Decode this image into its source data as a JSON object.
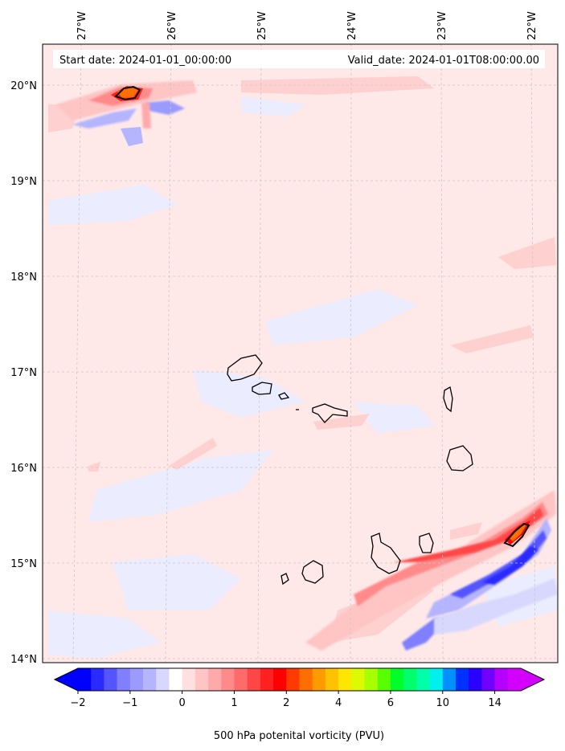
{
  "header": {
    "start_date": "Start date: 2024-01-01_00:00:00",
    "valid_date": "Valid_date: 2024-01-01T08:00:00.00"
  },
  "map": {
    "variable": "500 hPa potenital vorticity (PVU)",
    "longitude_labels": [
      "27°W",
      "26°W",
      "25°W",
      "24°W",
      "23°W",
      "22°W"
    ],
    "latitude_labels": [
      "20°N",
      "19°N",
      "18°N",
      "17°N",
      "16°N",
      "15°N",
      "14°N"
    ],
    "background_color": "#fee8e8",
    "islands": [
      "Santo Antão",
      "São Vicente",
      "Santa Luzia",
      "São Nicolau",
      "Sal",
      "Boa Vista",
      "Maio",
      "Santiago",
      "Fogo",
      "Brava"
    ]
  },
  "colorbar": {
    "tick_labels": [
      "−2",
      "−1",
      "0",
      "1",
      "2",
      "4",
      "6",
      "10",
      "14"
    ],
    "tick_values": [
      -2,
      -1,
      0,
      1,
      2,
      4,
      6,
      10,
      14
    ],
    "colors": [
      "#0000ff",
      "#2a2aff",
      "#5555ff",
      "#7f7fff",
      "#9a9aff",
      "#b4b4ff",
      "#d8d8ff",
      "#ffffff",
      "#ffe0e0",
      "#ffc4c4",
      "#ffaaaa",
      "#ff8a8a",
      "#ff6a6a",
      "#ff4646",
      "#ff2020",
      "#ff0000",
      "#ff3a00",
      "#ff6e00",
      "#ff9a00",
      "#ffc200",
      "#ffe600",
      "#dcfa00",
      "#a8ff00",
      "#58ff00",
      "#00ff2a",
      "#00ff6a",
      "#00ffa8",
      "#00f0f0",
      "#0090ff",
      "#0032ff",
      "#2a00ff",
      "#7000ff",
      "#b600ff",
      "#d400ff"
    ]
  }
}
